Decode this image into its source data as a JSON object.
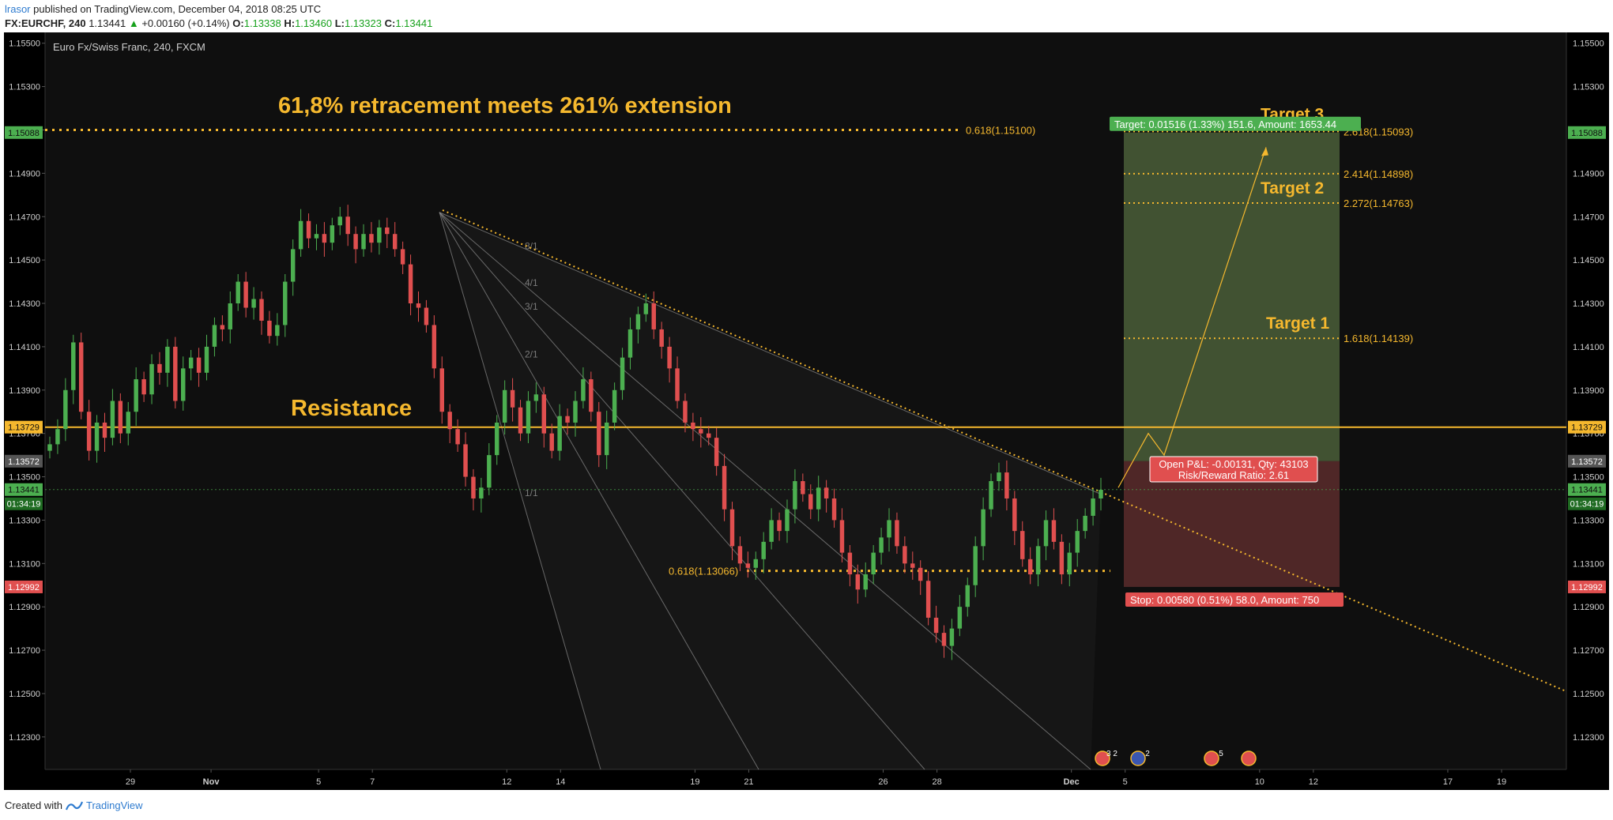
{
  "header": {
    "user": "lrasor",
    "published": "published on TradingView.com, December 04, 2018 08:25 UTC",
    "symbol": "FX:EURCHF, 240",
    "last": "1.13441",
    "change": "+0.00160 (+0.14%)",
    "o_label": "O:",
    "o": "1.13338",
    "h_label": "H:",
    "h": "1.13460",
    "l_label": "L:",
    "l": "1.13323",
    "c_label": "C:",
    "c": "1.13441"
  },
  "footer": {
    "created_with": "Created with",
    "brand": "TradingView"
  },
  "colors": {
    "background": "#0f0f0f",
    "up": "#4caf50",
    "down": "#e04f4f",
    "level": "#f5b82e",
    "target_zone": "#4a5e38",
    "stop_zone": "#5a2c2c"
  },
  "chart_data": {
    "type": "candlestick",
    "title": "Euro Fx/Swiss Franc, 240, FXCM",
    "ylim": [
      1.1215,
      1.1555
    ],
    "y_ticks": [
      "1.15500",
      "1.15300",
      "1.15100",
      "1.14900",
      "1.14700",
      "1.14500",
      "1.14300",
      "1.14100",
      "1.13900",
      "1.13700",
      "1.13500",
      "1.13300",
      "1.13100",
      "1.12900",
      "1.12700",
      "1.12500",
      "1.12300"
    ],
    "x_ticks": [
      {
        "label": "29",
        "date": "2018-10-29"
      },
      {
        "label": "Nov",
        "date": "2018-11-01"
      },
      {
        "label": "5",
        "date": "2018-11-05"
      },
      {
        "label": "7",
        "date": "2018-11-07"
      },
      {
        "label": "12",
        "date": "2018-11-12"
      },
      {
        "label": "14",
        "date": "2018-11-14"
      },
      {
        "label": "19",
        "date": "2018-11-19"
      },
      {
        "label": "21",
        "date": "2018-11-21"
      },
      {
        "label": "26",
        "date": "2018-11-26"
      },
      {
        "label": "28",
        "date": "2018-11-28"
      },
      {
        "label": "Dec",
        "date": "2018-12-03"
      },
      {
        "label": "5",
        "date": "2018-12-05"
      },
      {
        "label": "10",
        "date": "2018-12-10"
      },
      {
        "label": "12",
        "date": "2018-12-12"
      },
      {
        "label": "17",
        "date": "2018-12-17"
      },
      {
        "label": "19",
        "date": "2018-12-19"
      }
    ],
    "price_path": [
      1.1365,
      1.1372,
      1.139,
      1.1412,
      1.138,
      1.1362,
      1.1375,
      1.1368,
      1.1385,
      1.137,
      1.138,
      1.1395,
      1.1388,
      1.1402,
      1.1398,
      1.141,
      1.1385,
      1.14,
      1.1405,
      1.1398,
      1.141,
      1.142,
      1.1418,
      1.143,
      1.144,
      1.1428,
      1.1432,
      1.1422,
      1.1415,
      1.142,
      1.144,
      1.1455,
      1.1468,
      1.146,
      1.1462,
      1.1458,
      1.1466,
      1.147,
      1.1462,
      1.1455,
      1.1462,
      1.1458,
      1.1465,
      1.1462,
      1.1455,
      1.1448,
      1.143,
      1.1428,
      1.142,
      1.14,
      1.138,
      1.1372,
      1.1365,
      1.135,
      1.134,
      1.1345,
      1.136,
      1.1375,
      1.139,
      1.1382,
      1.137,
      1.1385,
      1.1388,
      1.137,
      1.1362,
      1.1378,
      1.1375,
      1.1385,
      1.1395,
      1.138,
      1.136,
      1.1375,
      1.139,
      1.1405,
      1.1418,
      1.1425,
      1.143,
      1.1418,
      1.141,
      1.14,
      1.1385,
      1.1375,
      1.1372,
      1.137,
      1.1368,
      1.1355,
      1.1335,
      1.1318,
      1.131,
      1.1308,
      1.1312,
      1.132,
      1.133,
      1.1325,
      1.1335,
      1.1348,
      1.1342,
      1.1335,
      1.1345,
      1.134,
      1.133,
      1.1315,
      1.1305,
      1.1298,
      1.1305,
      1.1315,
      1.1322,
      1.133,
      1.1318,
      1.131,
      1.1308,
      1.1302,
      1.1285,
      1.1278,
      1.1272,
      1.128,
      1.129,
      1.13,
      1.1318,
      1.1335,
      1.1348,
      1.1352,
      1.134,
      1.1325,
      1.1312,
      1.1305,
      1.1318,
      1.133,
      1.132,
      1.1305,
      1.1315,
      1.1325,
      1.1332,
      1.134,
      1.1344
    ],
    "annotations": {
      "headline": "61,8% retracement meets 261% extension",
      "resistance_label": "Resistance",
      "resistance_price": 1.13729,
      "resistance_tag": "1.13729",
      "last_price_tag": "1.13441",
      "last_price": 1.13441,
      "countdown": "01:34:19",
      "entry_price_tag": "1.13572",
      "entry_price": 1.13572,
      "stop_price_tag": "1.12992",
      "stop_price": 1.12992,
      "target_price_tag": "1.15088",
      "target_price": 1.15088,
      "fib_retracement_top": {
        "label": "0.618(1.15100)",
        "price": 1.151
      },
      "fib_retracement_bottom": {
        "label": "0.618(1.13066)",
        "price": 1.13066
      },
      "extensions": [
        {
          "label": "2.618(1.15093)",
          "price": 1.15093
        },
        {
          "label": "2.414(1.14898)",
          "price": 1.14898
        },
        {
          "label": "2.272(1.14763)",
          "price": 1.14763
        },
        {
          "label": "1.618(1.14139)",
          "price": 1.14139
        }
      ],
      "targets": [
        {
          "label": "Target 3",
          "price": 1.15093
        },
        {
          "label": "Target 2",
          "price": 1.14763
        },
        {
          "label": "Target 1",
          "price": 1.14139
        }
      ],
      "position_target_text": "Target: 0.01516 (1.33%) 151.6, Amount: 1653.44",
      "position_stop_text": "Stop: 0.00580 (0.51%) 58.0, Amount: 750",
      "open_pnl_text": "Open P&L: -0.00131, Qty: 43103",
      "risk_reward_text": "Risk/Reward Ratio: 2.61",
      "gann_fan_labels": [
        "8/1",
        "4/1",
        "3/1",
        "2/1",
        "1/1"
      ],
      "event_badges": [
        "3 2",
        "2",
        "5",
        ""
      ]
    }
  }
}
